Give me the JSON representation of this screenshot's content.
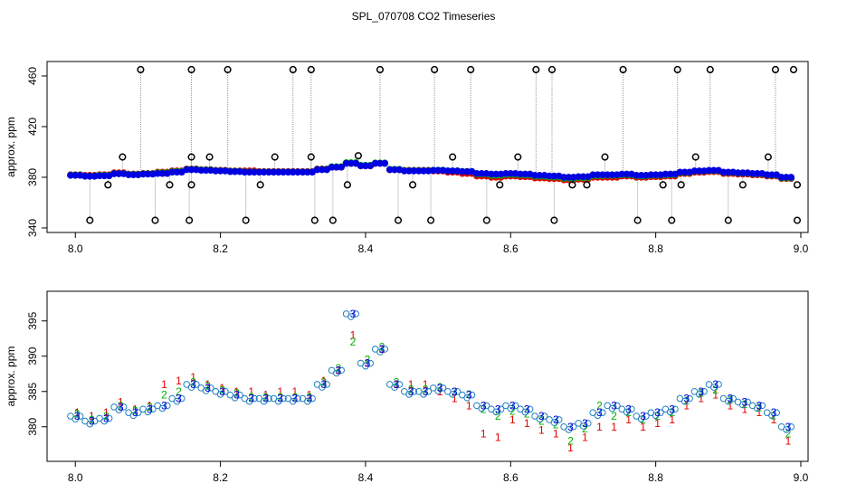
{
  "title": "SPL_070708  CO2 Timeseries",
  "chart_data": [
    {
      "type": "scatter",
      "ylabel": "approx. ppm",
      "xlim": [
        7.961,
        9.01
      ],
      "ylim": [
        336.4,
        471.4
      ],
      "xticks": [
        {
          "value": 8,
          "label": "8.0"
        },
        8.2,
        8.4,
        8.6,
        8.8,
        {
          "value": 9,
          "label": "9.0"
        }
      ],
      "yticks": [
        340,
        380,
        420,
        460
      ],
      "x": [
        8.0,
        8.02,
        8.04,
        8.06,
        8.08,
        8.1,
        8.12,
        8.14,
        8.16,
        8.18,
        8.2,
        8.22,
        8.24,
        8.26,
        8.28,
        8.3,
        8.32,
        8.34,
        8.36,
        8.38,
        8.4,
        8.42,
        8.44,
        8.46,
        8.48,
        8.5,
        8.52,
        8.54,
        8.56,
        8.58,
        8.6,
        8.62,
        8.64,
        8.66,
        8.68,
        8.7,
        8.72,
        8.74,
        8.76,
        8.78,
        8.8,
        8.82,
        8.84,
        8.86,
        8.88,
        8.9,
        8.92,
        8.94,
        8.96,
        8.98
      ],
      "series": [
        {
          "name": "1",
          "color": "#e00000",
          "values": [
            382,
            381.5,
            382,
            383.5,
            382.5,
            383,
            384,
            385,
            386.5,
            386,
            385.5,
            385,
            385,
            384.5,
            384.5,
            384.5,
            384.5,
            386.5,
            388,
            391,
            389,
            391,
            386,
            385.5,
            385.5,
            385,
            384,
            383,
            381,
            380,
            381,
            380.5,
            379.5,
            379,
            378,
            378.5,
            380,
            380,
            381,
            380,
            380.5,
            381,
            383,
            384,
            384.5,
            383,
            382.5,
            382,
            381,
            379
          ]
        },
        {
          "name": "2",
          "color": "#00b000",
          "values": [
            381.8,
            381,
            381.5,
            383,
            382.3,
            382.8,
            383.5,
            384.5,
            386.3,
            385.8,
            385.2,
            384.8,
            384.2,
            384.2,
            384.2,
            384.2,
            384.2,
            386.3,
            388.3,
            391.5,
            389.5,
            391.3,
            386.3,
            385.3,
            385.3,
            385.6,
            385,
            384.6,
            382.5,
            381.5,
            382.2,
            381.8,
            380.8,
            380.3,
            379.2,
            379.7,
            381.3,
            381.5,
            382,
            381,
            381.5,
            382,
            383.7,
            384.8,
            385.2,
            383.8,
            383.2,
            382.7,
            381.6,
            379.5
          ]
        },
        {
          "name": "3",
          "color": "#0000e0",
          "values": [
            381.5,
            380.8,
            381.2,
            382.8,
            382,
            382.5,
            383,
            384,
            386,
            385.5,
            385,
            384.5,
            384,
            384,
            384,
            384,
            384,
            386,
            388,
            391,
            389,
            391,
            386,
            385,
            385,
            385.5,
            385,
            384.5,
            383,
            382.5,
            383,
            382.5,
            381.5,
            381,
            380,
            380.5,
            382,
            382,
            382.5,
            381.5,
            382,
            382.5,
            384,
            385,
            385.5,
            384,
            383.5,
            383,
            382,
            380
          ]
        }
      ],
      "outliers": {
        "color": "#000000",
        "x": [
          8.09,
          8.16,
          8.21,
          8.3,
          8.325,
          8.42,
          8.495,
          8.545,
          8.635,
          8.657,
          8.755,
          8.83,
          8.875,
          8.965,
          8.99,
          8.02,
          8.11,
          8.157,
          8.235,
          8.33,
          8.355,
          8.445,
          8.49,
          8.567,
          8.66,
          8.775,
          8.822,
          8.9,
          8.995,
          8.065,
          8.16,
          8.185,
          8.275,
          8.325,
          8.39,
          8.52,
          8.61,
          8.73,
          8.855,
          8.955,
          8.045,
          8.13,
          8.16,
          8.255,
          8.375,
          8.465,
          8.585,
          8.685,
          8.705,
          8.81,
          8.835,
          8.92,
          8.995
        ],
        "values": [
          465,
          465,
          465,
          465,
          465,
          465,
          465,
          465,
          465,
          465,
          465,
          465,
          465,
          465,
          465,
          346,
          346,
          346,
          346,
          346,
          346,
          346,
          346,
          346,
          346,
          346,
          346,
          346,
          346,
          396,
          396,
          396,
          396,
          396,
          397,
          396,
          396,
          396,
          396,
          396,
          374,
          374,
          374,
          374,
          374,
          374,
          374,
          374,
          374,
          374,
          374,
          374,
          374
        ]
      }
    },
    {
      "type": "symbols",
      "ylabel": "approx. ppm",
      "xlim": [
        7.961,
        9.01
      ],
      "ylim": [
        375.1,
        399.2
      ],
      "xticks": [
        {
          "value": 8,
          "label": "8.0"
        },
        8.2,
        8.4,
        8.6,
        8.8,
        {
          "value": 9,
          "label": "9.0"
        }
      ],
      "yticks": [
        380,
        385,
        390,
        395
      ],
      "x": [
        8.0,
        8.02,
        8.04,
        8.06,
        8.08,
        8.1,
        8.12,
        8.14,
        8.16,
        8.18,
        8.2,
        8.22,
        8.24,
        8.26,
        8.28,
        8.3,
        8.32,
        8.34,
        8.36,
        8.38,
        8.4,
        8.42,
        8.44,
        8.46,
        8.48,
        8.5,
        8.52,
        8.54,
        8.56,
        8.58,
        8.6,
        8.62,
        8.64,
        8.66,
        8.68,
        8.7,
        8.72,
        8.74,
        8.76,
        8.78,
        8.8,
        8.82,
        8.84,
        8.86,
        8.88,
        8.9,
        8.92,
        8.94,
        8.96,
        8.98
      ],
      "series": [
        {
          "name": "1",
          "color": "#e00000",
          "values": [
            382,
            381.5,
            382,
            383.5,
            382.5,
            383,
            386,
            386.5,
            387,
            386,
            385.5,
            385,
            385,
            384.5,
            385,
            385,
            384.5,
            386.5,
            388,
            393,
            389,
            391,
            386,
            386,
            386,
            385,
            384,
            383,
            379,
            378.5,
            381,
            380.5,
            379.5,
            379,
            377,
            378.5,
            380,
            380,
            381,
            380,
            380.5,
            381,
            383,
            384,
            384.5,
            383,
            382.5,
            382,
            381,
            378
          ]
        },
        {
          "name": "2",
          "color": "#00b000",
          "values": [
            381.8,
            381,
            381.5,
            383,
            382.3,
            382.8,
            384.5,
            385,
            386.3,
            385.8,
            385.2,
            384.8,
            384.2,
            384.2,
            384.2,
            384.2,
            384.2,
            386.3,
            388.3,
            392,
            389.5,
            391.3,
            386.3,
            385.3,
            385.3,
            385.6,
            385,
            384.6,
            382.5,
            381.5,
            382.2,
            381.8,
            380.8,
            380.3,
            378,
            379.7,
            383,
            381.5,
            382,
            381,
            381.5,
            382,
            383.7,
            384.8,
            385.2,
            383.8,
            383.2,
            382.7,
            381.6,
            379
          ]
        },
        {
          "name": "3",
          "color": "#0000e0",
          "values": [
            381.5,
            380.8,
            381.2,
            382.8,
            382,
            382.5,
            383,
            384,
            386,
            385.5,
            385,
            384.5,
            384,
            384,
            384,
            384,
            384,
            386,
            388,
            396,
            389,
            391,
            386,
            385,
            385,
            385.5,
            385,
            384.5,
            383,
            382.5,
            383,
            382.5,
            381.5,
            381,
            380,
            380.5,
            382,
            383,
            382.5,
            381.5,
            382,
            382.5,
            384,
            385,
            386,
            384,
            383.5,
            383,
            382,
            380
          ]
        }
      ]
    }
  ]
}
